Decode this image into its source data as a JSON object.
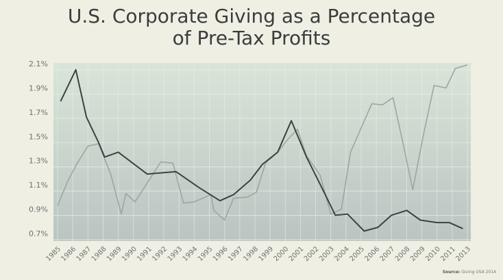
{
  "chart_data": {
    "type": "line",
    "title": [
      "U.S. Corporate Giving as a Percentage",
      "of Pre-Tax Profits"
    ],
    "xlabel": "",
    "ylabel": "",
    "categories": [
      "1985",
      "1986",
      "1987",
      "1988",
      "1989",
      "1990",
      "1991",
      "1992",
      "1993",
      "1994",
      "1995",
      "1996",
      "1997",
      "1998",
      "1999",
      "2000",
      "2001",
      "2002",
      "2003",
      "2004",
      "2005",
      "2006",
      "2007",
      "2008",
      "2009",
      "2010",
      "2011",
      "2013"
    ],
    "y_ticks": [
      "0.7%",
      "0.9%",
      "1.1%",
      "1.3%",
      "1.5%",
      "1.7%",
      "1.9%",
      "2.1%"
    ],
    "y_tick_values": [
      0.7,
      0.9,
      1.1,
      1.3,
      1.5,
      1.7,
      1.9,
      2.1
    ],
    "ylim": [
      0.7,
      2.1
    ],
    "grid": true,
    "x_unit_note": "point x values are positions on the category axis (index 0 = 1985)",
    "series": [
      {
        "name": "dark",
        "color": "#3c4240",
        "points": [
          [
            0.2,
            1.79
          ],
          [
            1.2,
            2.05
          ],
          [
            1.9,
            1.66
          ],
          [
            2.7,
            1.45
          ],
          [
            3.1,
            1.33
          ],
          [
            4.0,
            1.37
          ],
          [
            5.9,
            1.19
          ],
          [
            7.8,
            1.21
          ],
          [
            9.3,
            1.08
          ],
          [
            10.7,
            0.97
          ],
          [
            11.6,
            1.02
          ],
          [
            12.7,
            1.14
          ],
          [
            13.5,
            1.27
          ],
          [
            14.5,
            1.37
          ],
          [
            15.4,
            1.63
          ],
          [
            16.4,
            1.33
          ],
          [
            17.4,
            1.08
          ],
          [
            18.3,
            0.85
          ],
          [
            19.1,
            0.86
          ],
          [
            20.2,
            0.72
          ],
          [
            21.1,
            0.75
          ],
          [
            22.0,
            0.85
          ],
          [
            23.0,
            0.89
          ],
          [
            23.9,
            0.81
          ],
          [
            25.0,
            0.79
          ],
          [
            25.8,
            0.79
          ],
          [
            26.7,
            0.74
          ]
        ]
      },
      {
        "name": "light",
        "color": "#9ea5a2",
        "points": [
          [
            0,
            0.93
          ],
          [
            0.7,
            1.14
          ],
          [
            1.3,
            1.28
          ],
          [
            2.0,
            1.42
          ],
          [
            2.7,
            1.44
          ],
          [
            3.5,
            1.19
          ],
          [
            4.2,
            0.86
          ],
          [
            4.5,
            1.03
          ],
          [
            5.1,
            0.96
          ],
          [
            6.8,
            1.29
          ],
          [
            7.6,
            1.28
          ],
          [
            8.3,
            0.95
          ],
          [
            9.0,
            0.96
          ],
          [
            10.1,
            1.02
          ],
          [
            10.3,
            0.89
          ],
          [
            11.0,
            0.81
          ],
          [
            11.6,
            0.99
          ],
          [
            12.5,
            1.0
          ],
          [
            13.1,
            1.04
          ],
          [
            13.7,
            1.28
          ],
          [
            14.5,
            1.37
          ],
          [
            15.2,
            1.48
          ],
          [
            15.8,
            1.56
          ],
          [
            16.4,
            1.34
          ],
          [
            17.3,
            1.18
          ],
          [
            18.0,
            0.86
          ],
          [
            18.7,
            0.9
          ],
          [
            19.3,
            1.37
          ],
          [
            20.7,
            1.77
          ],
          [
            21.4,
            1.76
          ],
          [
            22.1,
            1.82
          ],
          [
            22.8,
            1.42
          ],
          [
            23.4,
            1.06
          ],
          [
            24.1,
            1.51
          ],
          [
            24.8,
            1.92
          ],
          [
            25.6,
            1.9
          ],
          [
            26.2,
            2.06
          ],
          [
            27.0,
            2.09
          ]
        ]
      }
    ],
    "source_label": "Source:",
    "source_text": "Giving USA 2014"
  }
}
